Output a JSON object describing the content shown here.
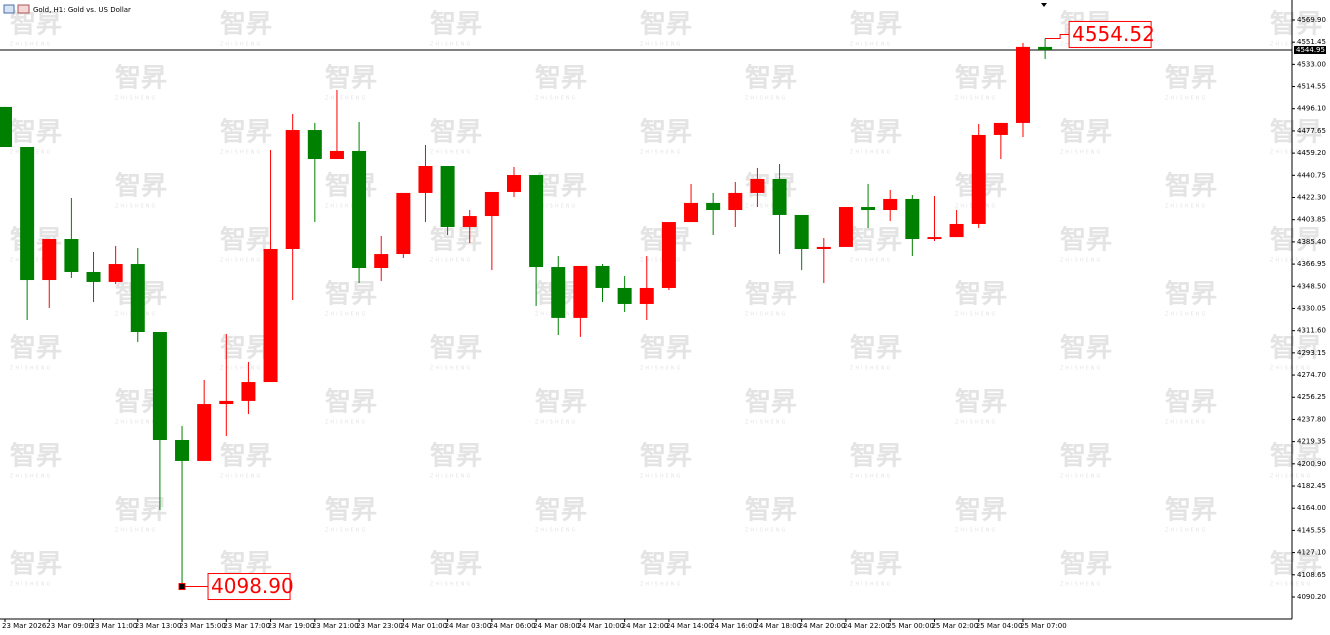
{
  "chart_data": {
    "type": "candlestick",
    "title": "Gold, H1:  Gold vs. US Dollar",
    "watermark": [
      "智昇",
      "ZHISHENG"
    ],
    "categories": [
      "23 Mar 2026",
      null,
      "23 Mar 09:00",
      null,
      "23 Mar 11:00",
      null,
      "23 Mar 13:00",
      null,
      "23 Mar 15:00",
      null,
      "23 Mar 17:00",
      null,
      "23 Mar 19:00",
      null,
      "23 Mar 21:00",
      null,
      "23 Mar 23:00",
      null,
      "24 Mar 01:00",
      null,
      "24 Mar 03:00",
      null,
      "24 Mar 06:00",
      null,
      "24 Mar 08:00",
      null,
      "24 Mar 10:00",
      null,
      "24 Mar 12:00",
      null,
      "24 Mar 14:00",
      null,
      "24 Mar 16:00",
      null,
      "24 Mar 18:00",
      null,
      "24 Mar 20:00",
      null,
      "24 Mar 22:00",
      null,
      "25 Mar 00:00",
      null,
      "25 Mar 02:00",
      null,
      "25 Mar 04:00",
      null,
      "25 Mar 07:00",
      null
    ],
    "open": [
      4497.6,
      4464.3,
      4353.7,
      4387.8,
      4360.4,
      4352.1,
      4367.0,
      4310.5,
      4220.7,
      4203.3,
      4250.6,
      4253.2,
      4268.9,
      4379.5,
      4478.4,
      4454.3,
      4461.0,
      4363.7,
      4375.3,
      4426.1,
      4448.5,
      4397.8,
      4406.9,
      4426.9,
      4441.0,
      4364.5,
      4322.2,
      4365.4,
      4347.1,
      4333.8,
      4347.1,
      4401.9,
      4417.8,
      4411.9,
      4426.1,
      4437.7,
      4407.8,
      4379.5,
      4381.2,
      4414.4,
      4411.9,
      4421.1,
      4387.8,
      4389.4,
      4400.3,
      4474.3,
      4484.3,
      4547.5
    ],
    "high": [
      4497.6,
      4464.3,
      4387.8,
      4421.9,
      4377.0,
      4382.0,
      4380.3,
      4310.5,
      4232.3,
      4270.6,
      4308.9,
      4285.6,
      4461.8,
      4491.7,
      4484.3,
      4511.7,
      4485.1,
      4390.3,
      4426.1,
      4466.0,
      4448.5,
      4411.9,
      4426.9,
      4447.7,
      4441.0,
      4373.7,
      4365.4,
      4367.0,
      4357.0,
      4373.7,
      4401.9,
      4433.6,
      4426.1,
      4435.2,
      4446.9,
      4450.2,
      4407.8,
      4388.6,
      4414.4,
      4433.6,
      4428.6,
      4424.4,
      4423.6,
      4411.9,
      4483.4,
      4484.3,
      4550.8,
      4554.52
    ],
    "low": [
      4464.3,
      4320.5,
      4330.5,
      4355.4,
      4335.4,
      4350.4,
      4302.2,
      4162.5,
      4098.9,
      4203.3,
      4224.0,
      4242.3,
      4268.9,
      4337.1,
      4401.9,
      4454.3,
      4351.2,
      4352.9,
      4372.0,
      4401.9,
      4391.1,
      4384.5,
      4362.0,
      4422.7,
      4332.1,
      4308.0,
      4306.4,
      4335.4,
      4327.1,
      4320.5,
      4345.4,
      4401.9,
      4391.1,
      4397.8,
      4414.4,
      4375.3,
      4362.0,
      4351.2,
      4381.2,
      4396.9,
      4402.8,
      4373.7,
      4386.1,
      4389.4,
      4396.9,
      4454.3,
      4472.6,
      4537.5
    ],
    "close": [
      4464.3,
      4353.7,
      4387.8,
      4360.4,
      4352.1,
      4367.0,
      4310.5,
      4220.7,
      4203.3,
      4250.6,
      4253.2,
      4268.9,
      4379.5,
      4478.4,
      4454.3,
      4461.0,
      4363.7,
      4375.3,
      4426.1,
      4448.5,
      4397.8,
      4406.9,
      4426.9,
      4441.0,
      4364.5,
      4322.2,
      4365.4,
      4347.1,
      4333.8,
      4347.1,
      4401.9,
      4417.8,
      4411.9,
      4426.1,
      4437.7,
      4407.8,
      4379.5,
      4381.2,
      4414.4,
      4411.9,
      4421.1,
      4387.8,
      4389.4,
      4400.3,
      4474.3,
      4484.3,
      4547.5,
      4544.95
    ],
    "up_color": "#ff0000",
    "down_color": "#008000",
    "current_price": 4544.95,
    "annotations": [
      4554.52,
      {
        "value": 4098.9,
        "label": "4098.90"
      }
    ],
    "ylim": [
      4071.9,
      4586.5
    ],
    "yticks": [
      {
        "value": 4569.9,
        "label": "4569.90"
      },
      {
        "value": 4551.45,
        "label": "4551.45"
      },
      {
        "value": 4533.0,
        "label": "4533.00"
      },
      {
        "value": 4514.55,
        "label": "4514.55"
      },
      {
        "value": 4496.1,
        "label": "4496.10"
      },
      {
        "value": 4477.65,
        "label": "4477.65"
      },
      {
        "value": 4459.2,
        "label": "4459.20"
      },
      {
        "value": 4440.75,
        "label": "4440.75"
      },
      {
        "value": 4422.3,
        "label": "4422.30"
      },
      {
        "value": 4403.85,
        "label": "4403.85"
      },
      {
        "value": 4385.4,
        "label": "4385.40"
      },
      {
        "value": 4366.95,
        "label": "4366.95"
      },
      {
        "value": 4348.5,
        "label": "4348.50"
      },
      {
        "value": 4330.05,
        "label": "4330.05"
      },
      {
        "value": 4311.6,
        "label": "4311.60"
      },
      {
        "value": 4293.15,
        "label": "4293.15"
      },
      {
        "value": 4274.7,
        "label": "4274.70"
      },
      {
        "value": 4256.25,
        "label": "4256.25"
      },
      {
        "value": 4237.8,
        "label": "4237.80"
      },
      {
        "value": 4219.35,
        "label": "4219.35"
      },
      {
        "value": 4200.9,
        "label": "4200.90"
      },
      {
        "value": 4182.45,
        "label": "4182.45"
      },
      {
        "value": 4164.0,
        "label": "4164.00"
      },
      {
        "value": 4145.55,
        "label": "4145.55"
      },
      {
        "value": 4127.1,
        "label": "4127.10"
      },
      {
        "value": 4108.65,
        "label": "4108.65"
      },
      {
        "value": 4090.2,
        "label": "4090.20"
      }
    ]
  }
}
